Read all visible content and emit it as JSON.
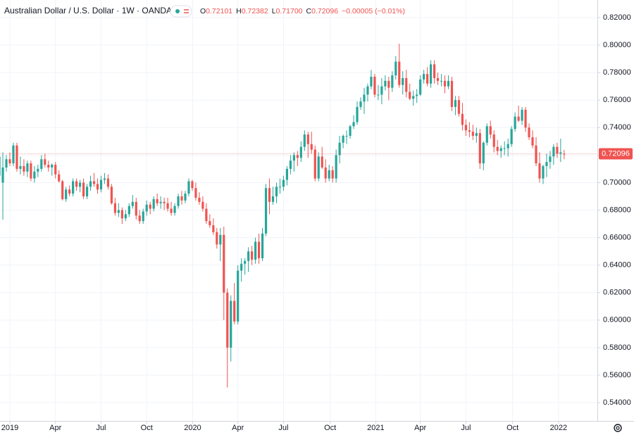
{
  "chart_data": {
    "type": "candlestick",
    "title": "Australian Dollar / U.S. Dollar · 1W · OANDA",
    "header_values": [
      {
        "label": "O",
        "value": "0.72101"
      },
      {
        "label": "H",
        "value": "0.72382"
      },
      {
        "label": "L",
        "value": "0.71700"
      },
      {
        "label": "C",
        "value": "0.72096"
      }
    ],
    "change": "−0.00005 (−0.01%)",
    "up_color": "#26a69a",
    "down_color": "#ef5350",
    "grid": true,
    "ylim": [
      0.5267,
      0.8328
    ],
    "yticks": [
      {
        "value": 0.54,
        "label": "0.54000"
      },
      {
        "value": 0.56,
        "label": "0.56000"
      },
      {
        "value": 0.58,
        "label": "0.58000"
      },
      {
        "value": 0.6,
        "label": "0.60000"
      },
      {
        "value": 0.62,
        "label": "0.62000"
      },
      {
        "value": 0.64,
        "label": "0.64000"
      },
      {
        "value": 0.66,
        "label": "0.66000"
      },
      {
        "value": 0.68,
        "label": "0.68000"
      },
      {
        "value": 0.7,
        "label": "0.70000"
      },
      {
        "value": 0.72,
        "label": "0.72000"
      },
      {
        "value": 0.74,
        "label": "0.74000"
      },
      {
        "value": 0.76,
        "label": "0.76000"
      },
      {
        "value": 0.78,
        "label": "0.78000"
      },
      {
        "value": 0.8,
        "label": "0.80000"
      },
      {
        "value": 0.82,
        "label": "0.82000"
      }
    ],
    "xlim": [
      -2.81,
      167.47
    ],
    "xticks": [
      {
        "value": 0,
        "label": "2019"
      },
      {
        "value": 13,
        "label": "Apr"
      },
      {
        "value": 26,
        "label": "Jul"
      },
      {
        "value": 39,
        "label": "Oct"
      },
      {
        "value": 52.1,
        "label": "2020"
      },
      {
        "value": 65,
        "label": "Apr"
      },
      {
        "value": 78,
        "label": "Jul"
      },
      {
        "value": 91.3,
        "label": "Oct"
      },
      {
        "value": 104.3,
        "label": "2021"
      },
      {
        "value": 117,
        "label": "Apr"
      },
      {
        "value": 130,
        "label": "Jul"
      },
      {
        "value": 143.3,
        "label": "Oct"
      },
      {
        "value": 156.4,
        "label": "2022"
      }
    ],
    "x": [
      -3,
      -2,
      -1,
      0,
      1,
      2,
      3,
      4,
      5,
      6,
      7,
      8,
      9,
      10,
      11,
      12,
      13,
      14,
      15,
      16,
      17,
      18,
      19,
      20,
      21,
      22,
      23,
      24,
      25,
      26,
      27,
      28,
      29,
      30,
      31,
      32,
      33,
      34,
      35,
      36,
      37,
      38,
      39,
      40,
      41,
      42,
      43,
      44,
      45,
      46,
      47,
      48,
      49,
      50,
      51,
      52,
      53,
      54,
      55,
      56,
      57,
      58,
      59,
      60,
      61,
      62,
      63,
      64,
      65,
      66,
      67,
      68,
      69,
      70,
      71,
      72,
      73,
      74,
      75,
      76,
      77,
      78,
      79,
      80,
      81,
      82,
      83,
      84,
      85,
      86,
      87,
      88,
      89,
      90,
      91,
      92,
      93,
      94,
      95,
      96,
      97,
      98,
      99,
      100,
      101,
      102,
      103,
      104,
      105,
      106,
      107,
      108,
      109,
      110,
      111,
      112,
      113,
      114,
      115,
      116,
      117,
      118,
      119,
      120,
      121,
      122,
      123,
      124,
      125,
      126,
      127,
      128,
      129,
      130,
      131,
      132,
      133,
      134,
      135,
      136,
      137,
      138,
      139,
      140,
      141,
      142,
      143,
      144,
      145,
      146,
      147,
      148,
      149,
      150,
      151,
      152,
      153,
      154,
      155,
      156,
      157,
      158
    ],
    "open": [
      0.705,
      0.7,
      0.711,
      0.717,
      0.714,
      0.727,
      0.71,
      0.712,
      0.708,
      0.714,
      0.703,
      0.708,
      0.71,
      0.717,
      0.713,
      0.711,
      0.713,
      0.706,
      0.701,
      0.688,
      0.695,
      0.692,
      0.701,
      0.697,
      0.7,
      0.69,
      0.697,
      0.701,
      0.699,
      0.695,
      0.702,
      0.703,
      0.697,
      0.685,
      0.678,
      0.68,
      0.674,
      0.677,
      0.683,
      0.686,
      0.676,
      0.672,
      0.679,
      0.684,
      0.681,
      0.688,
      0.685,
      0.686,
      0.685,
      0.681,
      0.678,
      0.683,
      0.69,
      0.687,
      0.692,
      0.701,
      0.696,
      0.689,
      0.686,
      0.681,
      0.672,
      0.669,
      0.664,
      0.655,
      0.662,
      0.62,
      0.58,
      0.614,
      0.599,
      0.636,
      0.641,
      0.643,
      0.65,
      0.644,
      0.657,
      0.645,
      0.663,
      0.696,
      0.686,
      0.69,
      0.697,
      0.697,
      0.702,
      0.71,
      0.716,
      0.72,
      0.718,
      0.726,
      0.735,
      0.728,
      0.724,
      0.703,
      0.719,
      0.711,
      0.703,
      0.709,
      0.703,
      0.72,
      0.729,
      0.734,
      0.734,
      0.741,
      0.744,
      0.755,
      0.759,
      0.764,
      0.77,
      0.777,
      0.764,
      0.764,
      0.77,
      0.774,
      0.769,
      0.778,
      0.788,
      0.771,
      0.776,
      0.766,
      0.761,
      0.763,
      0.764,
      0.775,
      0.779,
      0.772,
      0.786,
      0.776,
      0.774,
      0.774,
      0.77,
      0.774,
      0.755,
      0.76,
      0.75,
      0.742,
      0.738,
      0.737,
      0.734,
      0.736,
      0.714,
      0.729,
      0.741,
      0.735,
      0.726,
      0.723,
      0.725,
      0.725,
      0.728,
      0.739,
      0.748,
      0.745,
      0.753,
      0.74,
      0.733,
      0.727,
      0.714,
      0.703,
      0.712,
      0.715,
      0.719,
      0.726,
      0.721,
      0.72101
    ],
    "high": [
      0.721,
      0.722,
      0.72,
      0.722,
      0.729,
      0.729,
      0.719,
      0.717,
      0.716,
      0.716,
      0.712,
      0.713,
      0.72,
      0.721,
      0.716,
      0.714,
      0.715,
      0.709,
      0.702,
      0.697,
      0.698,
      0.703,
      0.703,
      0.702,
      0.703,
      0.699,
      0.705,
      0.707,
      0.703,
      0.705,
      0.707,
      0.706,
      0.699,
      0.689,
      0.685,
      0.682,
      0.68,
      0.685,
      0.691,
      0.689,
      0.68,
      0.681,
      0.687,
      0.686,
      0.69,
      0.692,
      0.69,
      0.689,
      0.689,
      0.686,
      0.685,
      0.692,
      0.694,
      0.694,
      0.703,
      0.702,
      0.7,
      0.693,
      0.69,
      0.685,
      0.677,
      0.674,
      0.667,
      0.667,
      0.668,
      0.623,
      0.618,
      0.627,
      0.64,
      0.645,
      0.645,
      0.653,
      0.654,
      0.66,
      0.663,
      0.667,
      0.699,
      0.703,
      0.697,
      0.7,
      0.703,
      0.705,
      0.712,
      0.72,
      0.722,
      0.723,
      0.73,
      0.738,
      0.737,
      0.737,
      0.727,
      0.722,
      0.726,
      0.717,
      0.713,
      0.712,
      0.724,
      0.734,
      0.735,
      0.738,
      0.742,
      0.749,
      0.759,
      0.762,
      0.769,
      0.772,
      0.782,
      0.779,
      0.771,
      0.776,
      0.778,
      0.777,
      0.781,
      0.792,
      0.801,
      0.781,
      0.782,
      0.772,
      0.767,
      0.768,
      0.778,
      0.782,
      0.784,
      0.789,
      0.789,
      0.78,
      0.779,
      0.778,
      0.778,
      0.777,
      0.763,
      0.763,
      0.758,
      0.746,
      0.744,
      0.742,
      0.74,
      0.739,
      0.73,
      0.743,
      0.745,
      0.738,
      0.731,
      0.727,
      0.73,
      0.732,
      0.741,
      0.751,
      0.756,
      0.755,
      0.755,
      0.743,
      0.738,
      0.733,
      0.722,
      0.713,
      0.721,
      0.723,
      0.728,
      0.729,
      0.732,
      0.72382
    ],
    "low": [
      0.703,
      0.673,
      0.708,
      0.712,
      0.712,
      0.708,
      0.706,
      0.705,
      0.704,
      0.701,
      0.7,
      0.704,
      0.708,
      0.711,
      0.708,
      0.705,
      0.703,
      0.7,
      0.687,
      0.686,
      0.69,
      0.69,
      0.694,
      0.693,
      0.688,
      0.688,
      0.694,
      0.697,
      0.692,
      0.693,
      0.699,
      0.695,
      0.684,
      0.676,
      0.675,
      0.67,
      0.672,
      0.675,
      0.681,
      0.673,
      0.67,
      0.67,
      0.676,
      0.677,
      0.679,
      0.683,
      0.681,
      0.68,
      0.679,
      0.676,
      0.676,
      0.681,
      0.684,
      0.685,
      0.69,
      0.694,
      0.687,
      0.684,
      0.679,
      0.67,
      0.667,
      0.662,
      0.652,
      0.643,
      0.6,
      0.551,
      0.57,
      0.597,
      0.597,
      0.628,
      0.633,
      0.635,
      0.64,
      0.641,
      0.641,
      0.643,
      0.661,
      0.677,
      0.684,
      0.685,
      0.692,
      0.694,
      0.698,
      0.706,
      0.708,
      0.712,
      0.715,
      0.723,
      0.718,
      0.721,
      0.701,
      0.701,
      0.71,
      0.7,
      0.701,
      0.7,
      0.7,
      0.714,
      0.725,
      0.728,
      0.732,
      0.739,
      0.742,
      0.753,
      0.75,
      0.759,
      0.768,
      0.762,
      0.76,
      0.757,
      0.767,
      0.76,
      0.766,
      0.775,
      0.769,
      0.764,
      0.762,
      0.76,
      0.756,
      0.758,
      0.763,
      0.772,
      0.77,
      0.769,
      0.772,
      0.771,
      0.77,
      0.765,
      0.768,
      0.752,
      0.749,
      0.748,
      0.738,
      0.734,
      0.733,
      0.731,
      0.729,
      0.71,
      0.709,
      0.727,
      0.732,
      0.722,
      0.72,
      0.718,
      0.72,
      0.719,
      0.726,
      0.737,
      0.744,
      0.742,
      0.737,
      0.731,
      0.725,
      0.712,
      0.7,
      0.699,
      0.704,
      0.71,
      0.713,
      0.718,
      0.715,
      0.717
    ],
    "close": [
      0.719,
      0.711,
      0.717,
      0.714,
      0.727,
      0.71,
      0.712,
      0.708,
      0.714,
      0.703,
      0.708,
      0.71,
      0.717,
      0.713,
      0.711,
      0.713,
      0.706,
      0.701,
      0.688,
      0.695,
      0.692,
      0.701,
      0.697,
      0.7,
      0.69,
      0.697,
      0.701,
      0.699,
      0.695,
      0.702,
      0.703,
      0.697,
      0.685,
      0.678,
      0.68,
      0.674,
      0.677,
      0.683,
      0.686,
      0.676,
      0.672,
      0.679,
      0.684,
      0.681,
      0.688,
      0.685,
      0.686,
      0.685,
      0.681,
      0.678,
      0.683,
      0.69,
      0.687,
      0.692,
      0.701,
      0.696,
      0.689,
      0.686,
      0.681,
      0.672,
      0.669,
      0.664,
      0.655,
      0.662,
      0.62,
      0.58,
      0.614,
      0.599,
      0.636,
      0.641,
      0.643,
      0.65,
      0.644,
      0.657,
      0.645,
      0.663,
      0.696,
      0.686,
      0.69,
      0.697,
      0.697,
      0.702,
      0.71,
      0.716,
      0.72,
      0.718,
      0.726,
      0.735,
      0.728,
      0.724,
      0.703,
      0.719,
      0.711,
      0.703,
      0.709,
      0.703,
      0.72,
      0.729,
      0.734,
      0.734,
      0.741,
      0.744,
      0.755,
      0.759,
      0.764,
      0.77,
      0.777,
      0.764,
      0.764,
      0.77,
      0.774,
      0.769,
      0.778,
      0.788,
      0.771,
      0.776,
      0.766,
      0.761,
      0.763,
      0.764,
      0.775,
      0.779,
      0.772,
      0.786,
      0.776,
      0.774,
      0.774,
      0.77,
      0.774,
      0.755,
      0.76,
      0.75,
      0.742,
      0.738,
      0.737,
      0.734,
      0.736,
      0.714,
      0.729,
      0.741,
      0.735,
      0.726,
      0.723,
      0.725,
      0.725,
      0.728,
      0.739,
      0.748,
      0.745,
      0.753,
      0.74,
      0.733,
      0.727,
      0.714,
      0.703,
      0.712,
      0.715,
      0.719,
      0.726,
      0.721,
      0.722,
      0.72096
    ]
  }
}
